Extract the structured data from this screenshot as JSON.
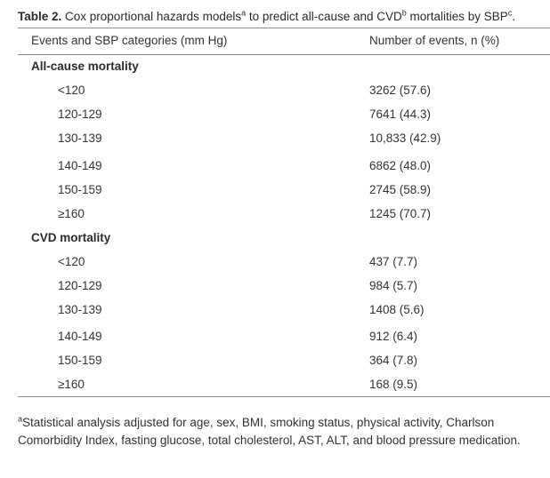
{
  "caption": {
    "label": "Table 2.",
    "text_before_a": " Cox proportional hazards models",
    "sup_a": "a",
    "text_before_b": " to predict all-cause and CVD",
    "sup_b": "b",
    "text_before_c": " mortalities by SBP",
    "sup_c": "c",
    "text_end": "."
  },
  "table": {
    "headers": [
      "Events and SBP categories (mm Hg)",
      "Number of events, n (%)"
    ],
    "sections": [
      {
        "title": "All-cause mortality",
        "rows": [
          {
            "category": "<120",
            "events": "3262 (57.6)"
          },
          {
            "category": "120-129",
            "events": "7641 (44.3)"
          },
          {
            "category": "130-139",
            "events": "10,833 (42.9)"
          },
          {
            "category": "140-149",
            "events": "6862 (48.0)"
          },
          {
            "category": "150-159",
            "events": "2745 (58.9)"
          },
          {
            "category": "≥160",
            "events": "1245 (70.7)"
          }
        ]
      },
      {
        "title": "CVD mortality",
        "rows": [
          {
            "category": "<120",
            "events": "437 (7.7)"
          },
          {
            "category": "120-129",
            "events": "984 (5.7)"
          },
          {
            "category": "130-139",
            "events": "1408 (5.6)"
          },
          {
            "category": "140-149",
            "events": "912 (6.4)"
          },
          {
            "category": "150-159",
            "events": "364 (7.8)"
          },
          {
            "category": "≥160",
            "events": "168 (9.5)"
          }
        ]
      }
    ]
  },
  "footnote": {
    "marker": "a",
    "text": "Statistical analysis adjusted for age, sex, BMI, smoking status, physical activity, Charlson Comorbidity Index, fasting glucose, total cholesterol, AST, ALT, and blood pressure medication."
  }
}
